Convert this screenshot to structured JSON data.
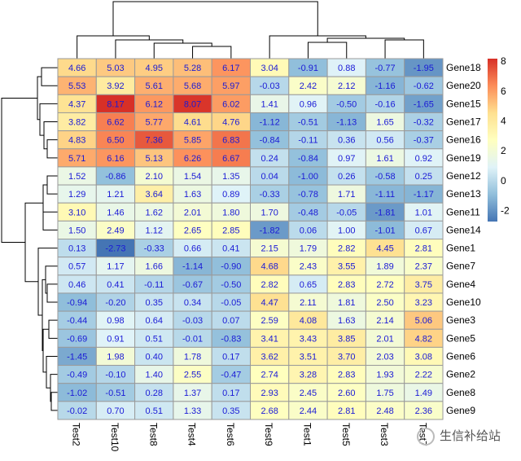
{
  "chart_data": {
    "type": "heatmap",
    "title": "",
    "columns": [
      "Test2",
      "Test10",
      "Test8",
      "Test4",
      "Test6",
      "Test9",
      "Test1",
      "Test5",
      "Test3",
      "Test7"
    ],
    "rows": [
      "Gene18",
      "Gene20",
      "Gene15",
      "Gene17",
      "Gene16",
      "Gene19",
      "Gene12",
      "Gene13",
      "Gene11",
      "Gene14",
      "Gene1",
      "Gene7",
      "Gene4",
      "Gene10",
      "Gene3",
      "Gene5",
      "Gene6",
      "Gene2",
      "Gene8",
      "Gene9"
    ],
    "values": [
      [
        4.66,
        5.03,
        4.95,
        5.28,
        6.17,
        3.04,
        -0.91,
        0.88,
        -0.77,
        -1.95
      ],
      [
        5.53,
        3.92,
        5.61,
        5.68,
        5.97,
        -0.03,
        2.42,
        2.12,
        -1.16,
        -0.62
      ],
      [
        4.37,
        8.17,
        6.12,
        8.07,
        6.02,
        1.41,
        0.96,
        -0.5,
        -0.16,
        -1.65
      ],
      [
        3.82,
        6.62,
        5.77,
        4.61,
        4.76,
        -1.12,
        -0.51,
        -1.13,
        1.65,
        -0.32
      ],
      [
        4.83,
        6.5,
        7.36,
        5.85,
        6.83,
        -0.84,
        -0.11,
        0.36,
        0.56,
        -0.37
      ],
      [
        5.71,
        6.16,
        5.13,
        6.26,
        6.67,
        0.24,
        -0.84,
        0.97,
        1.61,
        0.92
      ],
      [
        1.52,
        -0.86,
        2.1,
        1.54,
        1.35,
        0.04,
        -1.0,
        0.26,
        -0.58,
        0.25
      ],
      [
        1.29,
        1.21,
        3.64,
        1.63,
        0.89,
        -0.33,
        -0.78,
        1.71,
        -1.11,
        -1.17
      ],
      [
        3.1,
        1.46,
        1.62,
        2.01,
        1.8,
        1.7,
        -0.48,
        -0.05,
        -1.81,
        1.01
      ],
      [
        1.5,
        2.49,
        1.12,
        2.65,
        2.85,
        -1.82,
        0.06,
        1.0,
        -1.01,
        0.67
      ],
      [
        0.13,
        -2.73,
        -0.33,
        0.66,
        0.41,
        2.15,
        1.79,
        2.82,
        4.45,
        2.81
      ],
      [
        0.57,
        1.17,
        1.66,
        -1.14,
        -0.9,
        4.68,
        2.43,
        3.55,
        1.89,
        2.37
      ],
      [
        0.46,
        0.41,
        -0.11,
        -0.67,
        -0.5,
        2.82,
        0.65,
        2.83,
        2.72,
        3.75
      ],
      [
        -0.94,
        -0.2,
        0.35,
        0.34,
        -0.05,
        4.47,
        2.11,
        1.81,
        2.5,
        3.23
      ],
      [
        -0.44,
        0.98,
        0.64,
        -0.03,
        0.07,
        2.59,
        4.08,
        1.63,
        2.14,
        5.06
      ],
      [
        -0.69,
        0.91,
        0.51,
        -0.01,
        -0.83,
        3.41,
        3.43,
        3.85,
        2.01,
        4.82
      ],
      [
        -1.45,
        1.98,
        0.4,
        1.78,
        0.17,
        3.62,
        3.51,
        3.7,
        2.03,
        3.08
      ],
      [
        -0.49,
        -0.1,
        1.4,
        2.55,
        -0.47,
        2.74,
        3.28,
        2.83,
        1.93,
        2.22
      ],
      [
        -1.02,
        -0.51,
        0.28,
        1.37,
        0.17,
        2.93,
        2.45,
        2.6,
        1.75,
        1.49
      ],
      [
        -0.02,
        0.7,
        0.51,
        1.33,
        0.35,
        2.68,
        2.44,
        2.81,
        2.48,
        2.36
      ]
    ],
    "display_numbers": true,
    "color_scale": {
      "range": [
        -2.73,
        8.17
      ],
      "colors": [
        "#4575b4",
        "#91bfdb",
        "#e0f3f8",
        "#ffffbf",
        "#fee090",
        "#fc8d59",
        "#d73027"
      ],
      "legend_ticks": [
        "8",
        "6",
        "4",
        "2",
        "0",
        "-2"
      ],
      "legend_tick_values": [
        8,
        6,
        4,
        2,
        0,
        -2
      ]
    },
    "row_dendrogram": true,
    "column_dendrogram": true,
    "legend_position": "right"
  },
  "watermark": {
    "text": "生信补给站"
  }
}
